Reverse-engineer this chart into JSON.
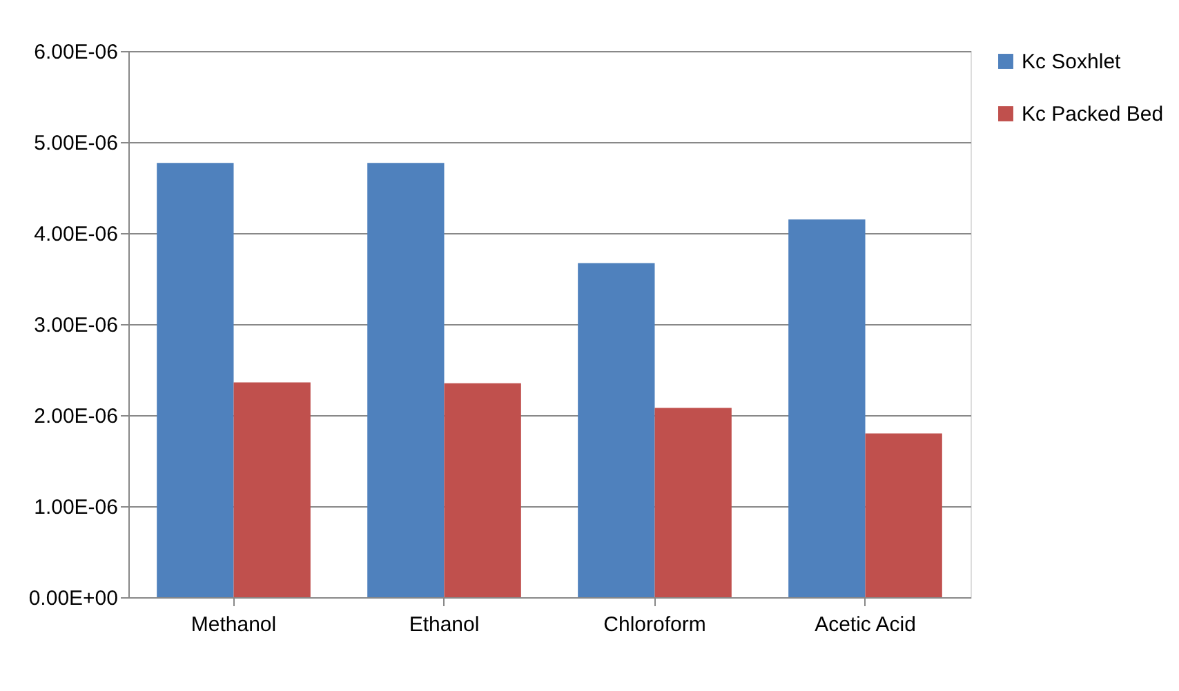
{
  "chart_data": {
    "type": "bar",
    "categories": [
      "Methanol",
      "Ethanol",
      "Chloroform",
      "Acetic Acid"
    ],
    "series": [
      {
        "name": "Kc Soxhlet",
        "color": "#4f81bd",
        "values": [
          4.77e-06,
          4.77e-06,
          3.67e-06,
          4.15e-06
        ]
      },
      {
        "name": "Kc Packed Bed",
        "color": "#c0504d",
        "values": [
          2.36e-06,
          2.35e-06,
          2.08e-06,
          1.8e-06
        ]
      }
    ],
    "ylim": [
      0,
      6e-06
    ],
    "yticks": [
      {
        "value": 0,
        "label": "0.00E+00"
      },
      {
        "value": 1e-06,
        "label": "1.00E-06"
      },
      {
        "value": 2e-06,
        "label": "2.00E-06"
      },
      {
        "value": 3e-06,
        "label": "3.00E-06"
      },
      {
        "value": 4e-06,
        "label": "4.00E-06"
      },
      {
        "value": 5e-06,
        "label": "5.00E-06"
      },
      {
        "value": 6e-06,
        "label": "6.00E-06"
      }
    ],
    "grid": "y",
    "legend": "right"
  }
}
